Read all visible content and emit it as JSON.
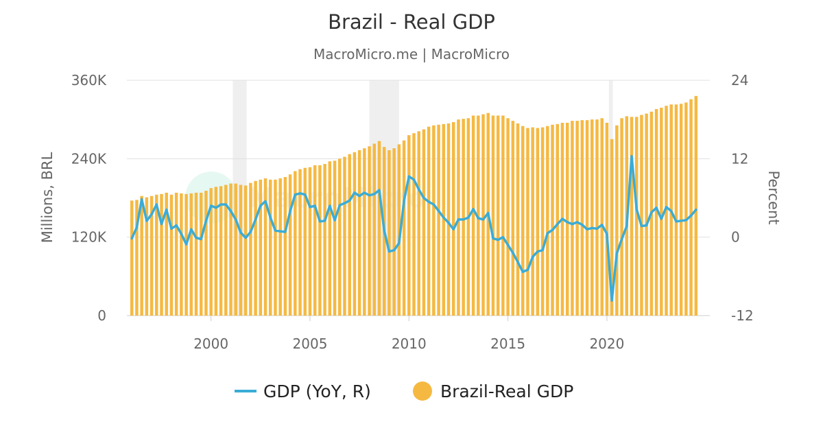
{
  "chart_data": {
    "type": "bar+line",
    "title": "Brazil - Real GDP",
    "subtitle": "MacroMicro.me | MacroMicro",
    "watermark": "MacroMicro",
    "y_left": {
      "label": "Millions, BRL",
      "range": [
        0,
        360000
      ],
      "ticks": [
        0,
        120000,
        240000,
        360000
      ],
      "tick_labels": [
        "0",
        "120K",
        "240K",
        "360K"
      ]
    },
    "y_right": {
      "label": "Percent",
      "range": [
        -12,
        24
      ],
      "ticks": [
        -12,
        0,
        12,
        24
      ],
      "tick_labels": [
        "-12",
        "0",
        "12",
        "24"
      ]
    },
    "x_axis": {
      "range": [
        1996.0,
        2024.9
      ],
      "ticks": [
        2000,
        2005,
        2010,
        2015,
        2020
      ],
      "tick_labels": [
        "2000",
        "2005",
        "2010",
        "2015",
        "2020"
      ]
    },
    "shaded_periods": [
      [
        2001.1,
        2001.8
      ],
      [
        2008.0,
        2009.5
      ],
      [
        2020.1,
        2020.3
      ]
    ],
    "grid": true,
    "legend_position": "bottom",
    "colors": {
      "bars": "#F5B942",
      "line": "#3AACD6",
      "shade": "#EFEFEF",
      "grid": "#E0E0E0",
      "title": "#333333",
      "subtitle": "#666666",
      "axis_text": "#666666"
    },
    "series": [
      {
        "name": "GDP (YoY, R)",
        "type": "line",
        "axis": "right",
        "points": [
          [
            1996.0,
            -0.2
          ],
          [
            1996.25,
            1.5
          ],
          [
            1996.5,
            5.8
          ],
          [
            1996.75,
            2.5
          ],
          [
            1997.0,
            3.5
          ],
          [
            1997.25,
            5.0
          ],
          [
            1997.5,
            2.0
          ],
          [
            1997.75,
            4.2
          ],
          [
            1998.0,
            1.3
          ],
          [
            1998.25,
            1.8
          ],
          [
            1998.5,
            0.5
          ],
          [
            1998.75,
            -1.1
          ],
          [
            1999.0,
            1.2
          ],
          [
            1999.25,
            -0.1
          ],
          [
            1999.5,
            -0.3
          ],
          [
            1999.75,
            2.5
          ],
          [
            2000.0,
            4.8
          ],
          [
            2000.25,
            4.5
          ],
          [
            2000.5,
            5.0
          ],
          [
            2000.75,
            5.0
          ],
          [
            2001.0,
            4.0
          ],
          [
            2001.25,
            2.7
          ],
          [
            2001.5,
            0.7
          ],
          [
            2001.75,
            -0.1
          ],
          [
            2002.0,
            0.8
          ],
          [
            2002.25,
            2.7
          ],
          [
            2002.5,
            4.8
          ],
          [
            2002.75,
            5.5
          ],
          [
            2003.0,
            3.0
          ],
          [
            2003.25,
            1.0
          ],
          [
            2003.5,
            0.9
          ],
          [
            2003.75,
            0.8
          ],
          [
            2004.0,
            4.0
          ],
          [
            2004.25,
            6.5
          ],
          [
            2004.5,
            6.7
          ],
          [
            2004.75,
            6.5
          ],
          [
            2005.0,
            4.6
          ],
          [
            2005.25,
            4.8
          ],
          [
            2005.5,
            2.4
          ],
          [
            2005.75,
            2.5
          ],
          [
            2006.0,
            4.8
          ],
          [
            2006.25,
            2.6
          ],
          [
            2006.5,
            4.9
          ],
          [
            2006.75,
            5.2
          ],
          [
            2007.0,
            5.6
          ],
          [
            2007.25,
            6.8
          ],
          [
            2007.5,
            6.3
          ],
          [
            2007.75,
            6.8
          ],
          [
            2008.0,
            6.4
          ],
          [
            2008.25,
            6.6
          ],
          [
            2008.5,
            7.2
          ],
          [
            2008.75,
            1.0
          ],
          [
            2009.0,
            -2.2
          ],
          [
            2009.25,
            -2.0
          ],
          [
            2009.5,
            -0.9
          ],
          [
            2009.75,
            5.6
          ],
          [
            2010.0,
            9.3
          ],
          [
            2010.25,
            8.8
          ],
          [
            2010.5,
            7.3
          ],
          [
            2010.75,
            6.0
          ],
          [
            2011.0,
            5.4
          ],
          [
            2011.25,
            5.0
          ],
          [
            2011.5,
            4.0
          ],
          [
            2011.75,
            3.0
          ],
          [
            2012.0,
            2.2
          ],
          [
            2012.25,
            1.2
          ],
          [
            2012.5,
            2.7
          ],
          [
            2012.75,
            2.7
          ],
          [
            2013.0,
            3.0
          ],
          [
            2013.25,
            4.3
          ],
          [
            2013.5,
            2.9
          ],
          [
            2013.75,
            2.7
          ],
          [
            2014.0,
            3.7
          ],
          [
            2014.25,
            -0.2
          ],
          [
            2014.5,
            -0.4
          ],
          [
            2014.75,
            0.0
          ],
          [
            2015.0,
            -1.2
          ],
          [
            2015.25,
            -2.4
          ],
          [
            2015.5,
            -3.8
          ],
          [
            2015.75,
            -5.3
          ],
          [
            2016.0,
            -5.0
          ],
          [
            2016.25,
            -3.0
          ],
          [
            2016.5,
            -2.2
          ],
          [
            2016.75,
            -2.0
          ],
          [
            2017.0,
            0.6
          ],
          [
            2017.25,
            1.1
          ],
          [
            2017.5,
            2.0
          ],
          [
            2017.75,
            2.8
          ],
          [
            2018.0,
            2.3
          ],
          [
            2018.25,
            2.0
          ],
          [
            2018.5,
            2.3
          ],
          [
            2018.75,
            1.9
          ],
          [
            2019.0,
            1.2
          ],
          [
            2019.25,
            1.4
          ],
          [
            2019.5,
            1.3
          ],
          [
            2019.75,
            1.9
          ],
          [
            2020.0,
            0.5
          ],
          [
            2020.25,
            -9.7
          ],
          [
            2020.5,
            -2.5
          ],
          [
            2020.75,
            -0.3
          ],
          [
            2021.0,
            1.7
          ],
          [
            2021.25,
            12.4
          ],
          [
            2021.5,
            4.3
          ],
          [
            2021.75,
            1.7
          ],
          [
            2022.0,
            1.8
          ],
          [
            2022.25,
            3.8
          ],
          [
            2022.5,
            4.5
          ],
          [
            2022.75,
            2.8
          ],
          [
            2023.0,
            4.6
          ],
          [
            2023.25,
            4.0
          ],
          [
            2023.5,
            2.4
          ],
          [
            2023.75,
            2.5
          ],
          [
            2024.0,
            2.6
          ],
          [
            2024.25,
            3.3
          ],
          [
            2024.5,
            4.2
          ]
        ]
      },
      {
        "name": "Brazil-Real GDP",
        "type": "bar",
        "axis": "left",
        "points": [
          [
            1996.0,
            176000
          ],
          [
            1996.25,
            177000
          ],
          [
            1996.5,
            183000
          ],
          [
            1996.75,
            181000
          ],
          [
            1997.0,
            183000
          ],
          [
            1997.25,
            185000
          ],
          [
            1997.5,
            186000
          ],
          [
            1997.75,
            188000
          ],
          [
            1998.0,
            185000
          ],
          [
            1998.25,
            188000
          ],
          [
            1998.5,
            187000
          ],
          [
            1998.75,
            186000
          ],
          [
            1999.0,
            187000
          ],
          [
            1999.25,
            188000
          ],
          [
            1999.5,
            188000
          ],
          [
            1999.75,
            191000
          ],
          [
            2000.0,
            195000
          ],
          [
            2000.25,
            197000
          ],
          [
            2000.5,
            198000
          ],
          [
            2000.75,
            200000
          ],
          [
            2001.0,
            202000
          ],
          [
            2001.25,
            202000
          ],
          [
            2001.5,
            200000
          ],
          [
            2001.75,
            199000
          ],
          [
            2002.0,
            203000
          ],
          [
            2002.25,
            206000
          ],
          [
            2002.5,
            208000
          ],
          [
            2002.75,
            210000
          ],
          [
            2003.0,
            208000
          ],
          [
            2003.25,
            208000
          ],
          [
            2003.5,
            210000
          ],
          [
            2003.75,
            212000
          ],
          [
            2004.0,
            216000
          ],
          [
            2004.25,
            221000
          ],
          [
            2004.5,
            224000
          ],
          [
            2004.75,
            226000
          ],
          [
            2005.0,
            227000
          ],
          [
            2005.25,
            230000
          ],
          [
            2005.5,
            230000
          ],
          [
            2005.75,
            232000
          ],
          [
            2006.0,
            236000
          ],
          [
            2006.25,
            237000
          ],
          [
            2006.5,
            240000
          ],
          [
            2006.75,
            243000
          ],
          [
            2007.0,
            247000
          ],
          [
            2007.25,
            250000
          ],
          [
            2007.5,
            253000
          ],
          [
            2007.75,
            256000
          ],
          [
            2008.0,
            259000
          ],
          [
            2008.25,
            263000
          ],
          [
            2008.5,
            267000
          ],
          [
            2008.75,
            258000
          ],
          [
            2009.0,
            253000
          ],
          [
            2009.25,
            256000
          ],
          [
            2009.5,
            262000
          ],
          [
            2009.75,
            268000
          ],
          [
            2010.0,
            276000
          ],
          [
            2010.25,
            279000
          ],
          [
            2010.5,
            282000
          ],
          [
            2010.75,
            285000
          ],
          [
            2011.0,
            289000
          ],
          [
            2011.25,
            291000
          ],
          [
            2011.5,
            292000
          ],
          [
            2011.75,
            293000
          ],
          [
            2012.0,
            294000
          ],
          [
            2012.25,
            296000
          ],
          [
            2012.5,
            300000
          ],
          [
            2012.75,
            301000
          ],
          [
            2013.0,
            302000
          ],
          [
            2013.25,
            306000
          ],
          [
            2013.5,
            306000
          ],
          [
            2013.75,
            308000
          ],
          [
            2014.0,
            310000
          ],
          [
            2014.25,
            306000
          ],
          [
            2014.5,
            306000
          ],
          [
            2014.75,
            306000
          ],
          [
            2015.0,
            302000
          ],
          [
            2015.25,
            298000
          ],
          [
            2015.5,
            294000
          ],
          [
            2015.75,
            290000
          ],
          [
            2016.0,
            287000
          ],
          [
            2016.25,
            288000
          ],
          [
            2016.5,
            287000
          ],
          [
            2016.75,
            288000
          ],
          [
            2017.0,
            290000
          ],
          [
            2017.25,
            292000
          ],
          [
            2017.5,
            293000
          ],
          [
            2017.75,
            295000
          ],
          [
            2018.0,
            295000
          ],
          [
            2018.25,
            298000
          ],
          [
            2018.5,
            298000
          ],
          [
            2018.75,
            299000
          ],
          [
            2019.0,
            299000
          ],
          [
            2019.25,
            300000
          ],
          [
            2019.5,
            300000
          ],
          [
            2019.75,
            302000
          ],
          [
            2020.0,
            295000
          ],
          [
            2020.25,
            270000
          ],
          [
            2020.5,
            291000
          ],
          [
            2020.75,
            302000
          ],
          [
            2021.0,
            305000
          ],
          [
            2021.25,
            304000
          ],
          [
            2021.5,
            304000
          ],
          [
            2021.75,
            307000
          ],
          [
            2022.0,
            309000
          ],
          [
            2022.25,
            312000
          ],
          [
            2022.5,
            316000
          ],
          [
            2022.75,
            318000
          ],
          [
            2023.0,
            321000
          ],
          [
            2023.25,
            323000
          ],
          [
            2023.5,
            323000
          ],
          [
            2023.75,
            324000
          ],
          [
            2024.0,
            326000
          ],
          [
            2024.25,
            331000
          ],
          [
            2024.5,
            336000
          ]
        ]
      }
    ],
    "legend": [
      {
        "label": "GDP (YoY, R)",
        "marker": "line"
      },
      {
        "label": "Brazil-Real GDP",
        "marker": "circle"
      }
    ]
  }
}
